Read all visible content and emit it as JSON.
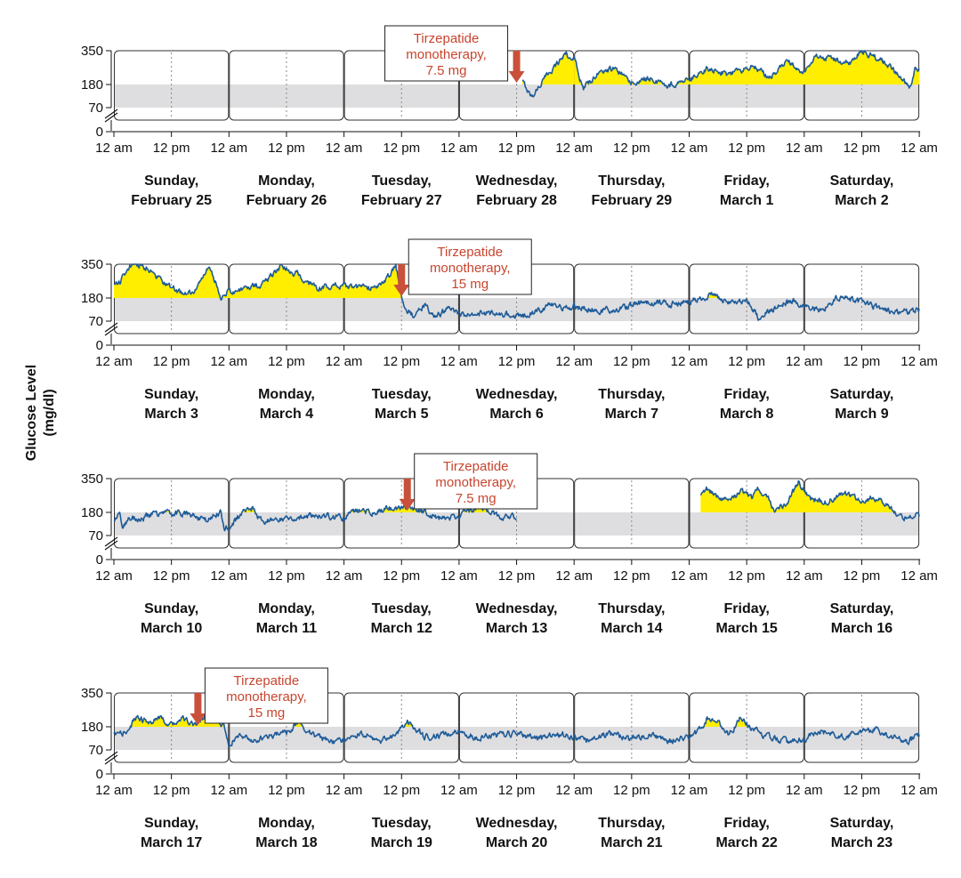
{
  "chart_data": {
    "type": "line",
    "title": "",
    "ylabel": "Glucose Level",
    "ylabel_units": "(mg/dl)",
    "y_ticks": [
      "350",
      "180",
      "70",
      "0"
    ],
    "target_range": [
      70,
      180
    ],
    "x_tick_labels": [
      "12 am",
      "12 pm",
      "12 am",
      "12 pm",
      "12 am",
      "12 pm",
      "12 am",
      "12 pm",
      "12 am",
      "12 pm",
      "12 am",
      "12 pm",
      "12 am",
      "12 pm",
      "12 am"
    ],
    "colors": {
      "trace": "#1f5c99",
      "above_range_fill": "#ffee00",
      "target_band": "#dedee0",
      "annotation": "#c8452e",
      "arrow": "#c9503a"
    },
    "weeks": [
      {
        "days": [
          {
            "weekday": "Sunday,",
            "date": "February 25"
          },
          {
            "weekday": "Monday,",
            "date": "February 26"
          },
          {
            "weekday": "Tuesday,",
            "date": "February 27"
          },
          {
            "weekday": "Wednesday,",
            "date": "February 28"
          },
          {
            "weekday": "Thursday,",
            "date": "February 29"
          },
          {
            "weekday": "Friday,",
            "date": "March 1"
          },
          {
            "weekday": "Saturday,",
            "date": "March 2"
          }
        ],
        "annotation": {
          "lines": [
            "Tirzepatide",
            "monotherapy,",
            "7.5 mg"
          ],
          "day": 3.5
        },
        "series": [
          {
            "start": 3.55,
            "end": 4.0,
            "keys": [
              [
                3.55,
                195
              ],
              [
                3.6,
                150
              ],
              [
                3.63,
                120
              ],
              [
                3.7,
                175
              ],
              [
                3.78,
                240
              ],
              [
                3.86,
                290
              ],
              [
                3.93,
                340
              ],
              [
                3.97,
                300
              ],
              [
                4.0,
                310
              ]
            ]
          },
          {
            "start": 4.0,
            "end": 7.0,
            "keys": [
              [
                4.0,
                310
              ],
              [
                4.08,
                160
              ],
              [
                4.2,
                230
              ],
              [
                4.35,
                260
              ],
              [
                4.5,
                190
              ],
              [
                4.65,
                210
              ],
              [
                4.8,
                175
              ],
              [
                5.0,
                200
              ],
              [
                5.15,
                260
              ],
              [
                5.35,
                230
              ],
              [
                5.55,
                275
              ],
              [
                5.7,
                215
              ],
              [
                5.85,
                300
              ],
              [
                6.0,
                240
              ],
              [
                6.1,
                320
              ],
              [
                6.25,
                310
              ],
              [
                6.4,
                290
              ],
              [
                6.5,
                350
              ],
              [
                6.6,
                320
              ],
              [
                6.75,
                270
              ],
              [
                6.85,
                200
              ],
              [
                6.93,
                170
              ],
              [
                6.97,
                270
              ],
              [
                7.0,
                250
              ]
            ]
          }
        ]
      },
      {
        "days": [
          {
            "weekday": "Sunday,",
            "date": "March 3"
          },
          {
            "weekday": "Monday,",
            "date": "March 4"
          },
          {
            "weekday": "Tuesday,",
            "date": "March 5"
          },
          {
            "weekday": "Wednesday,",
            "date": "March 6"
          },
          {
            "weekday": "Thursday,",
            "date": "March 7"
          },
          {
            "weekday": "Friday,",
            "date": "March 8"
          },
          {
            "weekday": "Saturday,",
            "date": "March 9"
          }
        ],
        "annotation": {
          "lines": [
            "Tirzepatide",
            "monotherapy,",
            "15 mg"
          ],
          "day": 2.5
        },
        "series": [
          {
            "start": 0.0,
            "end": 7.0,
            "keys": [
              [
                0.0,
                250
              ],
              [
                0.05,
                260
              ],
              [
                0.15,
                350
              ],
              [
                0.3,
                330
              ],
              [
                0.45,
                250
              ],
              [
                0.6,
                200
              ],
              [
                0.7,
                210
              ],
              [
                0.83,
                340
              ],
              [
                0.93,
                190
              ],
              [
                1.0,
                210
              ],
              [
                1.15,
                230
              ],
              [
                1.3,
                250
              ],
              [
                1.45,
                340
              ],
              [
                1.6,
                300
              ],
              [
                1.75,
                230
              ],
              [
                1.9,
                240
              ],
              [
                2.0,
                240
              ],
              [
                2.2,
                230
              ],
              [
                2.35,
                260
              ],
              [
                2.45,
                340
              ],
              [
                2.52,
                140
              ],
              [
                2.6,
                100
              ],
              [
                2.7,
                140
              ],
              [
                2.8,
                90
              ],
              [
                2.9,
                130
              ],
              [
                3.0,
                100
              ],
              [
                3.2,
                110
              ],
              [
                3.4,
                105
              ],
              [
                3.55,
                95
              ],
              [
                3.7,
                120
              ],
              [
                3.8,
                150
              ],
              [
                3.9,
                130
              ],
              [
                4.0,
                140
              ],
              [
                4.2,
                120
              ],
              [
                4.4,
                130
              ],
              [
                4.6,
                160
              ],
              [
                4.8,
                150
              ],
              [
                5.0,
                160
              ],
              [
                5.2,
                200
              ],
              [
                5.3,
                160
              ],
              [
                5.5,
                170
              ],
              [
                5.6,
                90
              ],
              [
                5.75,
                130
              ],
              [
                5.9,
                170
              ],
              [
                6.0,
                140
              ],
              [
                6.15,
                120
              ],
              [
                6.3,
                190
              ],
              [
                6.5,
                160
              ],
              [
                6.65,
                130
              ],
              [
                6.8,
                110
              ],
              [
                7.0,
                120
              ]
            ]
          }
        ]
      },
      {
        "days": [
          {
            "weekday": "Sunday,",
            "date": "March 10"
          },
          {
            "weekday": "Monday,",
            "date": "March 11"
          },
          {
            "weekday": "Tuesday,",
            "date": "March 12"
          },
          {
            "weekday": "Wednesday,",
            "date": "March 13"
          },
          {
            "weekday": "Thursday,",
            "date": "March 14"
          },
          {
            "weekday": "Friday,",
            "date": "March 15"
          },
          {
            "weekday": "Saturday,",
            "date": "March 16"
          }
        ],
        "annotation": {
          "lines": [
            "Tirzepatide",
            "monotherapy,",
            "7.5 mg"
          ],
          "day": 2.55
        },
        "series": [
          {
            "start": 0.0,
            "end": 3.5,
            "keys": [
              [
                0.0,
                140
              ],
              [
                0.05,
                180
              ],
              [
                0.08,
                110
              ],
              [
                0.15,
                160
              ],
              [
                0.25,
                150
              ],
              [
                0.35,
                175
              ],
              [
                0.5,
                180
              ],
              [
                0.65,
                170
              ],
              [
                0.8,
                140
              ],
              [
                0.93,
                180
              ],
              [
                0.96,
                110
              ],
              [
                1.0,
                110
              ],
              [
                1.1,
                170
              ],
              [
                1.2,
                200
              ],
              [
                1.3,
                130
              ],
              [
                1.4,
                150
              ],
              [
                1.6,
                150
              ],
              [
                1.75,
                170
              ],
              [
                1.9,
                160
              ],
              [
                2.0,
                150
              ],
              [
                2.1,
                190
              ],
              [
                2.25,
                180
              ],
              [
                2.4,
                200
              ],
              [
                2.55,
                210
              ],
              [
                2.7,
                180
              ],
              [
                2.85,
                150
              ],
              [
                3.0,
                160
              ],
              [
                3.1,
                190
              ],
              [
                3.2,
                210
              ],
              [
                3.35,
                160
              ],
              [
                3.5,
                160
              ]
            ]
          },
          {
            "start": 5.1,
            "end": 7.0,
            "keys": [
              [
                5.1,
                270
              ],
              [
                5.15,
                300
              ],
              [
                5.25,
                260
              ],
              [
                5.35,
                230
              ],
              [
                5.45,
                290
              ],
              [
                5.55,
                250
              ],
              [
                5.6,
                300
              ],
              [
                5.7,
                240
              ],
              [
                5.75,
                180
              ],
              [
                5.85,
                230
              ],
              [
                5.95,
                330
              ],
              [
                6.05,
                250
              ],
              [
                6.2,
                230
              ],
              [
                6.35,
                280
              ],
              [
                6.5,
                240
              ],
              [
                6.6,
                260
              ],
              [
                6.72,
                220
              ],
              [
                6.82,
                170
              ],
              [
                6.9,
                150
              ],
              [
                6.95,
                170
              ],
              [
                7.0,
                160
              ]
            ]
          }
        ]
      },
      {
        "days": [
          {
            "weekday": "Sunday,",
            "date": "March 17"
          },
          {
            "weekday": "Monday,",
            "date": "March 18"
          },
          {
            "weekday": "Tuesday,",
            "date": "March 19"
          },
          {
            "weekday": "Wednesday,",
            "date": "March 20"
          },
          {
            "weekday": "Thursday,",
            "date": "March 21"
          },
          {
            "weekday": "Friday,",
            "date": "March 22"
          },
          {
            "weekday": "Saturday,",
            "date": "March 23"
          }
        ],
        "annotation": {
          "lines": [
            "Tirzepatide",
            "monotherapy,",
            "15 mg"
          ],
          "day": 0.73
        },
        "series": [
          {
            "start": 0.0,
            "end": 7.0,
            "keys": [
              [
                0.0,
                140
              ],
              [
                0.1,
                150
              ],
              [
                0.2,
                230
              ],
              [
                0.3,
                200
              ],
              [
                0.4,
                220
              ],
              [
                0.5,
                190
              ],
              [
                0.6,
                220
              ],
              [
                0.7,
                190
              ],
              [
                0.8,
                230
              ],
              [
                0.95,
                190
              ],
              [
                1.0,
                100
              ],
              [
                1.1,
                140
              ],
              [
                1.2,
                110
              ],
              [
                1.35,
                140
              ],
              [
                1.5,
                150
              ],
              [
                1.6,
                200
              ],
              [
                1.75,
                140
              ],
              [
                1.9,
                100
              ],
              [
                2.0,
                120
              ],
              [
                2.15,
                150
              ],
              [
                2.3,
                110
              ],
              [
                2.45,
                140
              ],
              [
                2.55,
                210
              ],
              [
                2.7,
                130
              ],
              [
                2.85,
                140
              ],
              [
                3.0,
                160
              ],
              [
                3.15,
                130
              ],
              [
                3.3,
                140
              ],
              [
                3.5,
                150
              ],
              [
                3.7,
                120
              ],
              [
                3.85,
                150
              ],
              [
                4.0,
                130
              ],
              [
                4.15,
                110
              ],
              [
                4.3,
                150
              ],
              [
                4.5,
                120
              ],
              [
                4.65,
                140
              ],
              [
                4.8,
                110
              ],
              [
                5.0,
                130
              ],
              [
                5.1,
                170
              ],
              [
                5.15,
                220
              ],
              [
                5.25,
                200
              ],
              [
                5.35,
                140
              ],
              [
                5.45,
                230
              ],
              [
                5.55,
                170
              ],
              [
                5.7,
                130
              ],
              [
                5.85,
                110
              ],
              [
                6.0,
                120
              ],
              [
                6.15,
                160
              ],
              [
                6.3,
                130
              ],
              [
                6.45,
                150
              ],
              [
                6.6,
                170
              ],
              [
                6.8,
                130
              ],
              [
                6.9,
                110
              ],
              [
                7.0,
                140
              ]
            ]
          }
        ]
      }
    ]
  }
}
